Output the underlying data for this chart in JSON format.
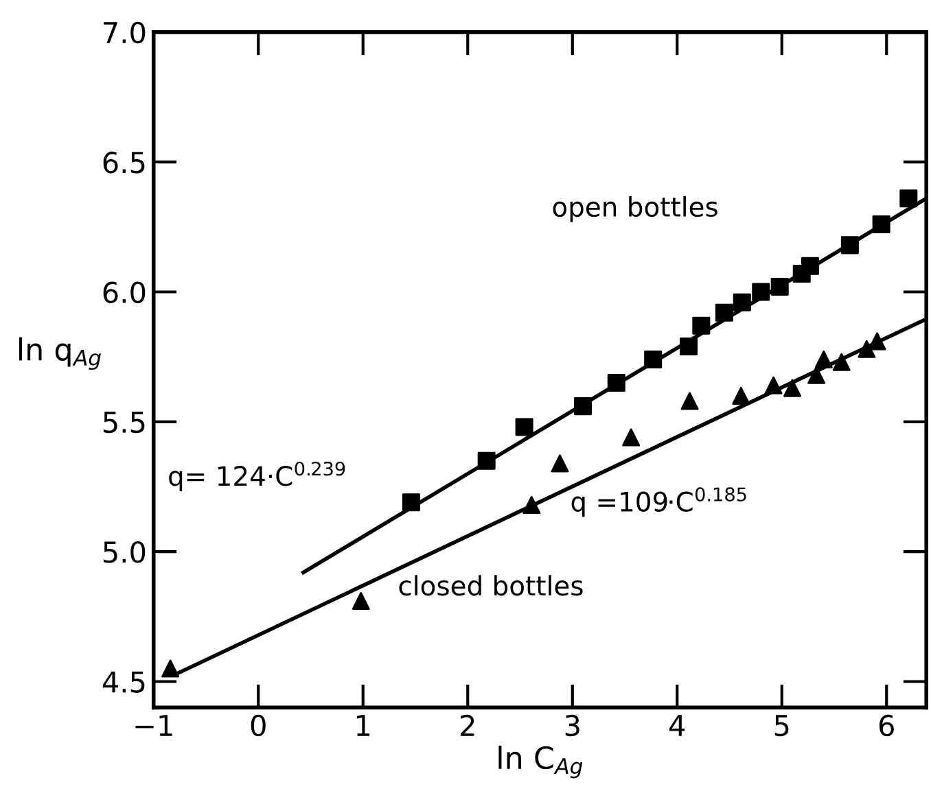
{
  "chart_data": {
    "type": "scatter",
    "xlabel": "ln C$_{Ag}$",
    "ylabel": "ln q$_{Ag}$",
    "series": [
      {
        "marker": "square",
        "color": "#000000",
        "x": [
          1.46,
          2.18,
          2.54,
          3.1,
          3.42,
          3.77,
          4.11,
          4.23,
          4.45,
          4.62,
          4.8,
          4.98,
          5.19,
          5.27,
          5.65,
          5.95,
          6.21
        ],
        "values": [
          5.19,
          5.35,
          5.48,
          5.56,
          5.65,
          5.74,
          5.79,
          5.87,
          5.92,
          5.96,
          6.0,
          6.02,
          6.07,
          6.1,
          6.18,
          6.26,
          6.36
        ]
      },
      {
        "marker": "triangle",
        "color": "#000000",
        "x": [
          -0.84,
          0.98,
          2.61,
          2.88,
          3.56,
          4.12,
          4.61,
          4.92,
          5.1,
          5.33,
          5.4,
          5.57,
          5.81,
          5.91
        ],
        "values": [
          4.55,
          4.81,
          5.18,
          5.34,
          5.44,
          5.58,
          5.6,
          5.64,
          5.63,
          5.68,
          5.74,
          5.73,
          5.78,
          5.81
        ]
      },
      {
        "type": "line",
        "marker": "none",
        "line_style": "solid",
        "color": "#000000",
        "x": [
          0.43,
          6.38
        ],
        "values": [
          4.92,
          6.36
        ]
      },
      {
        "type": "line",
        "marker": "none",
        "line_style": "solid",
        "color": "#000000",
        "x": [
          -0.78,
          6.35
        ],
        "values": [
          4.53,
          5.89
        ]
      }
    ],
    "annotations": [
      "open bottles",
      "closed bottles",
      "q= 124·C$^{0.239}$",
      "q =109·C$^{0.185}$"
    ],
    "xlim": [
      -1,
      6.38
    ],
    "ylim": [
      4.4,
      7.0
    ],
    "xticks": [
      {
        "value": -1,
        "label": "−1"
      },
      0,
      1,
      2,
      3,
      4,
      5,
      6
    ],
    "yticks": [
      {
        "value": 4.5,
        "label": "4.5"
      },
      {
        "value": 5.0,
        "label": "5.0"
      },
      {
        "value": 5.5,
        "label": "5.5"
      },
      {
        "value": 6.0,
        "label": "6.0"
      },
      {
        "value": 6.5,
        "label": "6.5"
      },
      {
        "value": 7.0,
        "label": "7.0"
      }
    ],
    "grid": false,
    "legend": false
  }
}
